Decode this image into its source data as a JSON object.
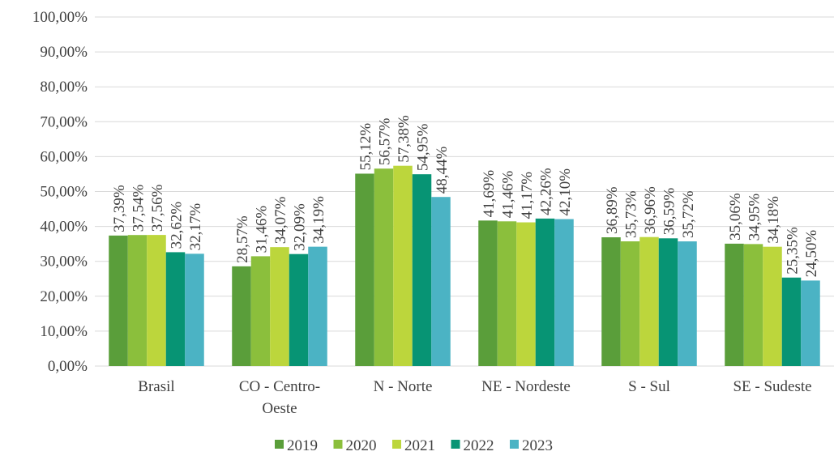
{
  "chart_data": {
    "type": "bar",
    "categories": [
      "Brasil",
      "CO - Centro-Oeste",
      "N - Norte",
      "NE - Nordeste",
      "S - Sul",
      "SE - Sudeste"
    ],
    "category_label_lines": [
      [
        "Brasil"
      ],
      [
        "CO - Centro-",
        "Oeste"
      ],
      [
        "N - Norte"
      ],
      [
        "NE - Nordeste"
      ],
      [
        "S - Sul"
      ],
      [
        "SE - Sudeste"
      ]
    ],
    "series": [
      {
        "name": "2019",
        "color": "#5a9e3a",
        "values": [
          37.39,
          28.57,
          55.12,
          41.69,
          36.89,
          35.06
        ],
        "labels": [
          "37,39%",
          "28,57%",
          "55,12%",
          "41,69%",
          "36,89%",
          "35,06%"
        ]
      },
      {
        "name": "2020",
        "color": "#8bbf3c",
        "values": [
          37.54,
          31.46,
          56.57,
          41.46,
          35.73,
          34.95
        ],
        "labels": [
          "37,54%",
          "31,46%",
          "56,57%",
          "41,46%",
          "35,73%",
          "34,95%"
        ]
      },
      {
        "name": "2021",
        "color": "#bcd63c",
        "values": [
          37.56,
          34.07,
          57.38,
          41.17,
          36.96,
          34.18
        ],
        "labels": [
          "37,56%",
          "34,07%",
          "57,38%",
          "41,17%",
          "36,96%",
          "34,18%"
        ]
      },
      {
        "name": "2022",
        "color": "#079474",
        "values": [
          32.62,
          32.09,
          54.95,
          42.26,
          36.59,
          25.35
        ],
        "labels": [
          "32,62%",
          "32,09%",
          "54,95%",
          "42,26%",
          "36,59%",
          "25,35%"
        ]
      },
      {
        "name": "2023",
        "color": "#4bb3c4",
        "values": [
          32.17,
          34.19,
          48.44,
          42.1,
          35.72,
          24.5
        ],
        "labels": [
          "32,17%",
          "34,19%",
          "48,44%",
          "42,10%",
          "35,72%",
          "24,50%"
        ]
      }
    ],
    "y_ticks": [
      0,
      10,
      20,
      30,
      40,
      50,
      60,
      70,
      80,
      90,
      100
    ],
    "y_tick_labels": [
      "0,00%",
      "10,00%",
      "20,00%",
      "30,00%",
      "40,00%",
      "50,00%",
      "60,00%",
      "70,00%",
      "80,00%",
      "90,00%",
      "100,00%"
    ],
    "ylim": [
      0,
      100
    ],
    "title": "",
    "xlabel": "",
    "ylabel": "",
    "grid": true,
    "legend_position": "bottom",
    "colors": {
      "grid": "#d9d9d9",
      "text": "#404040"
    }
  }
}
